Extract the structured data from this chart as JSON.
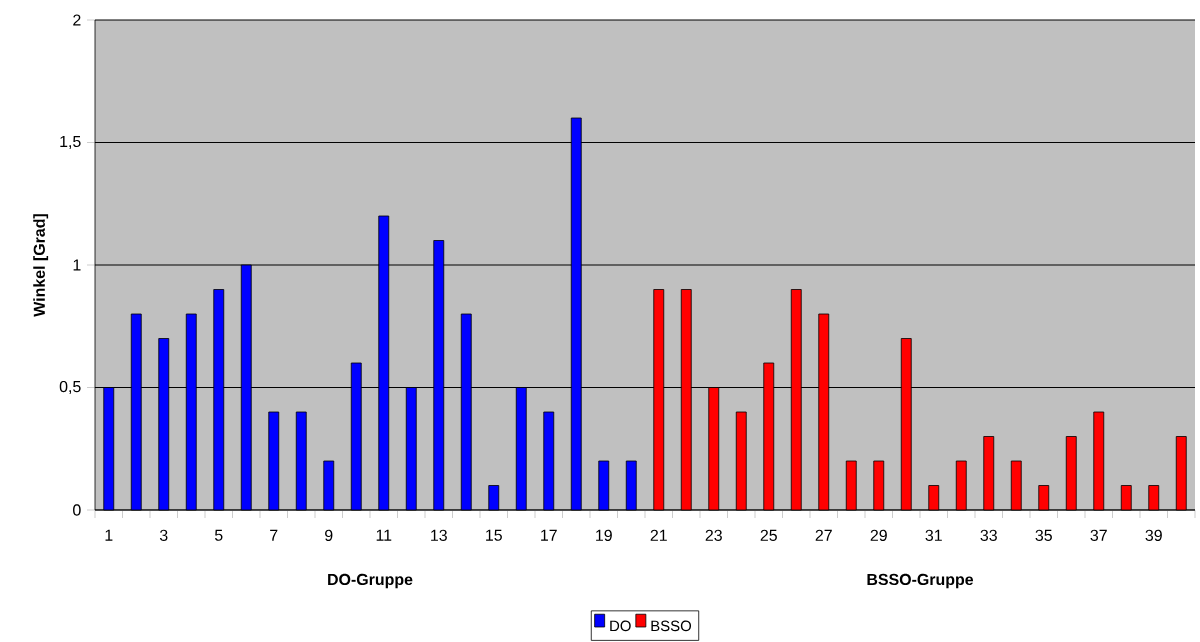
{
  "chart_data": {
    "type": "bar",
    "ylabel": "Winkel [Grad]",
    "categories": [
      "1",
      null,
      "3",
      null,
      "5",
      null,
      "7",
      null,
      "9",
      null,
      "11",
      null,
      "13",
      null,
      "15",
      null,
      "17",
      null,
      "19",
      null,
      "21",
      null,
      "23",
      null,
      "25",
      null,
      "27",
      null,
      "29",
      null,
      "31",
      null,
      "33",
      null,
      "35",
      null,
      "37",
      null,
      "39",
      null
    ],
    "series": [
      {
        "name": "DO",
        "color": "#0000ff",
        "values": [
          0.5,
          0.8,
          0.7,
          0.8,
          0.9,
          1.0,
          0.4,
          0.4,
          0.2,
          0.6,
          1.2,
          0.5,
          1.1,
          0.8,
          0.1,
          0.5,
          0.4,
          1.6,
          0.2,
          0.2,
          null,
          null,
          null,
          null,
          null,
          null,
          null,
          null,
          null,
          null,
          null,
          null,
          null,
          null,
          null,
          null,
          null,
          null,
          null,
          null
        ]
      },
      {
        "name": "BSSO",
        "color": "#ff0000",
        "values": [
          null,
          null,
          null,
          null,
          null,
          null,
          null,
          null,
          null,
          null,
          null,
          null,
          null,
          null,
          null,
          null,
          null,
          null,
          null,
          null,
          0.9,
          0.9,
          0.5,
          0.4,
          0.6,
          0.9,
          0.8,
          0.2,
          0.2,
          0.7,
          0.1,
          0.2,
          0.3,
          0.2,
          0.1,
          0.3,
          0.4,
          0.1,
          0.1,
          0.3
        ]
      }
    ],
    "ylim": [
      0,
      2
    ],
    "yticks": [
      0,
      {
        "value": 0.5,
        "label": "0,5"
      },
      1,
      {
        "value": 1.5,
        "label": "1,5"
      },
      2
    ],
    "grid": "y",
    "legend": "bottom",
    "annotations": [
      "DO-Gruppe",
      "BSSO-Gruppe"
    ]
  }
}
